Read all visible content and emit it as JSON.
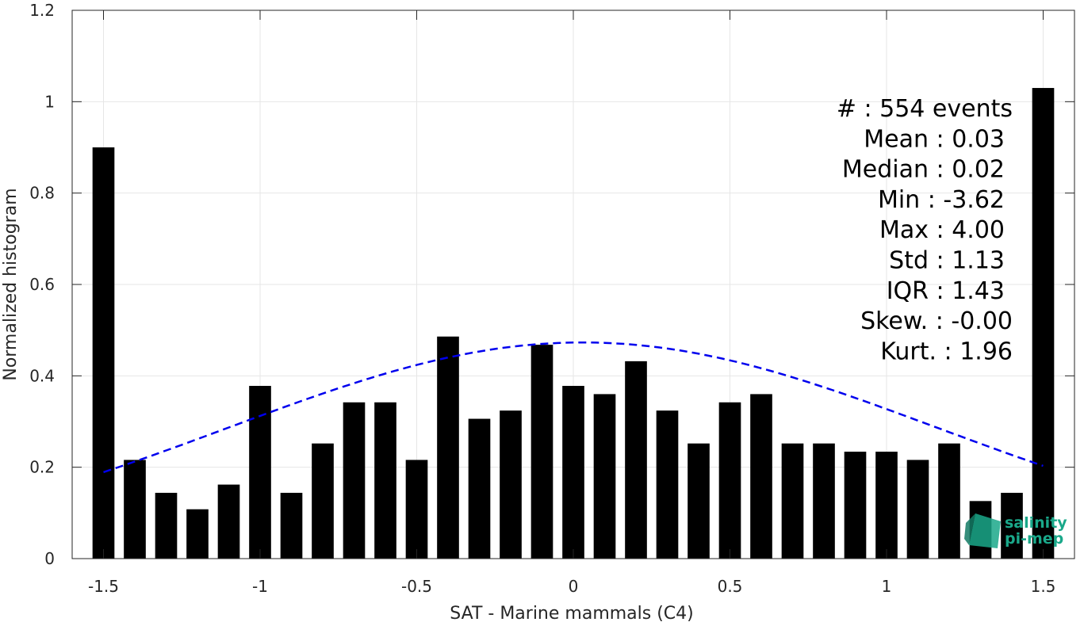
{
  "chart_data": {
    "type": "bar",
    "xlabel": "SAT - Marine mammals (C4)",
    "ylabel": "Normalized histogram",
    "xlim": [
      -1.6,
      1.6
    ],
    "ylim": [
      0,
      1.2
    ],
    "xticks": [
      -1.5,
      -1,
      -0.5,
      0,
      0.5,
      1,
      1.5
    ],
    "xtick_labels": [
      "-1.5",
      "-1",
      "-0.5",
      "0",
      "0.5",
      "1",
      "1.5"
    ],
    "yticks": [
      0,
      0.2,
      0.4,
      0.6,
      0.8,
      1,
      1.2
    ],
    "ytick_labels": [
      "0",
      "0.2",
      "0.4",
      "0.6",
      "0.8",
      "1",
      "1.2"
    ],
    "grid": true,
    "bar_color": "#000000",
    "fit_color": "#0000ee",
    "bins": [
      -1.5,
      -1.4,
      -1.3,
      -1.2,
      -1.1,
      -1.0,
      -0.9,
      -0.8,
      -0.7,
      -0.6,
      -0.5,
      -0.4,
      -0.3,
      -0.2,
      -0.1,
      0.0,
      0.1,
      0.2,
      0.3,
      0.4,
      0.5,
      0.6,
      0.7,
      0.8,
      0.9,
      1.0,
      1.1,
      1.2,
      1.3,
      1.4,
      1.5
    ],
    "values": [
      0.9,
      0.216,
      0.144,
      0.108,
      0.162,
      0.378,
      0.144,
      0.252,
      0.342,
      0.342,
      0.216,
      0.486,
      0.306,
      0.324,
      0.468,
      0.378,
      0.36,
      0.432,
      0.324,
      0.252,
      0.342,
      0.36,
      0.252,
      0.252,
      0.234,
      0.234,
      0.216,
      0.252,
      0.126,
      0.144,
      1.03
    ],
    "fit": {
      "type": "normal",
      "mean": 0.03,
      "std": 1.13,
      "linestyle": "dashed",
      "x_range": [
        -1.5,
        1.5
      ],
      "scale": 1.34
    },
    "annotations": [
      "#  : 554 events",
      "Mean : 0.03",
      "Median : 0.02",
      "Min : -3.62",
      "Max : 4.00",
      "Std : 1.13",
      "IQR : 1.43",
      "Skew. : -0.00",
      "Kurt. : 1.96"
    ]
  },
  "logo": {
    "line1": "salinity",
    "line2": "pi-mep",
    "color": "#1aa88a"
  }
}
